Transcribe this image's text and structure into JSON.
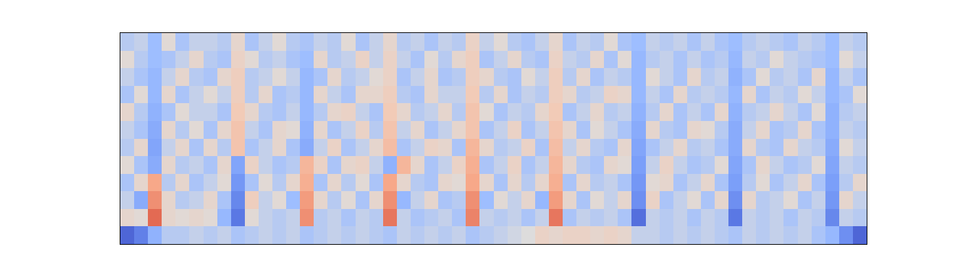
{
  "chart_data": {
    "type": "heatmap",
    "color": "coolwarm",
    "tick_labels": false,
    "zlim": [
      -1,
      1
    ],
    "cells": [
      [
        -0.85,
        -0.7,
        -0.35,
        -0.15,
        -0.15,
        -0.1,
        -0.15,
        -0.1,
        -0.2,
        -0.15,
        -0.1,
        -0.15,
        -0.1,
        -0.2,
        -0.15,
        -0.1,
        -0.15,
        -0.1,
        -0.15,
        -0.2,
        -0.1,
        -0.15,
        -0.1,
        -0.15,
        -0.1,
        -0.2,
        -0.15,
        -0.1,
        -0.05,
        0.0,
        0.15,
        0.1,
        0.15,
        0.15,
        0.1,
        0.15,
        0.1,
        -0.1,
        -0.1,
        -0.15,
        -0.1,
        -0.15,
        -0.1,
        -0.15,
        -0.2,
        -0.1,
        -0.15,
        -0.1,
        -0.15,
        -0.1,
        -0.2,
        -0.3,
        -0.6,
        -0.85
      ],
      [
        0.1,
        0.05,
        0.75,
        0.1,
        0.05,
        0.1,
        0.05,
        -0.3,
        -0.75,
        0.05,
        -0.1,
        -0.15,
        -0.1,
        0.6,
        -0.15,
        -0.1,
        -0.2,
        -0.1,
        -0.15,
        0.7,
        -0.1,
        -0.2,
        -0.15,
        -0.1,
        -0.2,
        0.65,
        -0.1,
        -0.15,
        -0.1,
        -0.2,
        -0.1,
        0.7,
        -0.2,
        -0.1,
        -0.15,
        -0.1,
        -0.2,
        -0.8,
        -0.1,
        -0.15,
        -0.1,
        -0.2,
        -0.1,
        -0.15,
        -0.75,
        -0.1,
        -0.15,
        -0.1,
        -0.2,
        -0.1,
        -0.15,
        -0.65,
        -0.1,
        -0.15
      ],
      [
        -0.1,
        -0.4,
        0.6,
        0.1,
        -0.15,
        -0.1,
        0.1,
        -0.2,
        -0.65,
        0.2,
        -0.1,
        0.05,
        -0.25,
        0.55,
        0.1,
        -0.15,
        0.05,
        -0.2,
        0.1,
        0.6,
        -0.3,
        -0.1,
        0.1,
        -0.2,
        -0.15,
        0.6,
        -0.25,
        0.05,
        -0.1,
        0.1,
        -0.3,
        0.55,
        0.1,
        -0.2,
        0.05,
        -0.1,
        0.1,
        -0.6,
        0.15,
        -0.2,
        -0.1,
        0.05,
        -0.2,
        0.1,
        -0.6,
        0.1,
        -0.15,
        -0.1,
        0.05,
        -0.2,
        -0.1,
        -0.55,
        0.1,
        -0.1
      ],
      [
        -0.2,
        0.1,
        0.5,
        -0.15,
        0.1,
        -0.2,
        -0.1,
        0.05,
        -0.55,
        -0.2,
        0.05,
        -0.15,
        0.1,
        0.45,
        -0.2,
        0.1,
        -0.15,
        0.05,
        -0.2,
        0.5,
        0.1,
        -0.15,
        -0.2,
        0.1,
        0.05,
        0.5,
        0.1,
        -0.2,
        0.1,
        -0.15,
        0.1,
        0.45,
        -0.2,
        0.1,
        -0.15,
        -0.1,
        -0.2,
        -0.55,
        0.05,
        0.1,
        -0.2,
        -0.1,
        0.1,
        -0.2,
        -0.5,
        -0.15,
        0.05,
        -0.2,
        -0.1,
        0.1,
        -0.2,
        -0.5,
        -0.15,
        0.1
      ],
      [
        0.05,
        -0.2,
        -0.4,
        0.1,
        -0.15,
        -0.1,
        -0.2,
        0.1,
        -0.45,
        0.15,
        -0.1,
        -0.2,
        -0.15,
        0.4,
        0.15,
        -0.2,
        0.1,
        0.15,
        -0.1,
        -0.35,
        0.4,
        0.1,
        -0.2,
        -0.1,
        0.15,
        0.45,
        -0.2,
        -0.1,
        0.15,
        -0.2,
        -0.1,
        0.4,
        0.1,
        -0.15,
        -0.2,
        0.1,
        0.05,
        -0.5,
        -0.1,
        0.15,
        -0.1,
        -0.2,
        -0.15,
        0.05,
        -0.45,
        -0.2,
        0.1,
        -0.1,
        -0.2,
        -0.15,
        0.05,
        -0.45,
        -0.1,
        -0.15
      ],
      [
        -0.15,
        0.1,
        -0.45,
        -0.1,
        0.1,
        -0.2,
        0.1,
        -0.15,
        0.3,
        -0.2,
        -0.1,
        0.1,
        -0.2,
        -0.4,
        -0.1,
        0.15,
        -0.2,
        -0.1,
        0.1,
        0.35,
        -0.2,
        -0.1,
        0.15,
        0.1,
        -0.2,
        0.4,
        0.1,
        -0.15,
        -0.1,
        0.15,
        -0.2,
        0.35,
        -0.1,
        0.1,
        -0.15,
        -0.2,
        0.1,
        -0.45,
        -0.2,
        -0.1,
        0.1,
        -0.15,
        -0.1,
        -0.2,
        -0.4,
        0.1,
        -0.15,
        -0.2,
        0.1,
        -0.1,
        -0.15,
        -0.4,
        0.05,
        -0.1
      ],
      [
        -0.1,
        -0.2,
        -0.4,
        0.1,
        -0.15,
        0.05,
        -0.2,
        0.1,
        0.3,
        -0.1,
        -0.2,
        0.1,
        0.05,
        -0.35,
        0.1,
        -0.2,
        -0.1,
        0.15,
        -0.15,
        0.3,
        -0.1,
        0.1,
        -0.2,
        -0.1,
        0.1,
        0.3,
        -0.2,
        -0.1,
        0.15,
        -0.2,
        -0.1,
        0.3,
        0.1,
        -0.2,
        0.05,
        -0.1,
        -0.2,
        -0.4,
        0.1,
        -0.15,
        -0.2,
        0.1,
        0.05,
        -0.15,
        -0.4,
        -0.1,
        0.1,
        -0.2,
        -0.15,
        0.1,
        -0.2,
        -0.35,
        -0.1,
        -0.15
      ],
      [
        0.1,
        -0.15,
        -0.35,
        -0.2,
        0.05,
        -0.1,
        -0.1,
        -0.2,
        0.25,
        0.1,
        -0.15,
        -0.2,
        -0.1,
        -0.3,
        -0.15,
        0.1,
        0.15,
        -0.1,
        -0.2,
        0.25,
        0.1,
        -0.15,
        -0.1,
        0.1,
        -0.15,
        0.3,
        0.05,
        -0.2,
        -0.1,
        -0.15,
        0.1,
        0.25,
        -0.2,
        -0.1,
        0.1,
        -0.15,
        -0.1,
        -0.35,
        -0.15,
        0.1,
        -0.2,
        -0.1,
        -0.2,
        0.1,
        -0.35,
        -0.15,
        -0.1,
        0.1,
        -0.1,
        -0.2,
        0.05,
        -0.35,
        -0.15,
        -0.1
      ],
      [
        -0.2,
        0.05,
        -0.3,
        0.1,
        -0.2,
        -0.1,
        0.05,
        -0.1,
        0.2,
        -0.15,
        0.1,
        -0.2,
        -0.15,
        -0.3,
        0.1,
        -0.1,
        -0.2,
        0.1,
        0.1,
        0.2,
        -0.15,
        -0.2,
        0.1,
        -0.1,
        -0.1,
        0.25,
        -0.15,
        0.1,
        -0.2,
        -0.1,
        -0.15,
        0.2,
        0.1,
        -0.15,
        -0.1,
        0.15,
        0.1,
        -0.3,
        -0.1,
        -0.2,
        0.1,
        -0.15,
        -0.1,
        -0.15,
        -0.3,
        0.1,
        -0.2,
        -0.1,
        -0.15,
        0.05,
        -0.1,
        -0.3,
        -0.2,
        0.05
      ],
      [
        -0.1,
        -0.2,
        -0.3,
        -0.1,
        0.1,
        -0.15,
        -0.2,
        0.1,
        0.2,
        -0.15,
        -0.1,
        0.05,
        -0.1,
        -0.3,
        -0.2,
        0.1,
        -0.15,
        -0.1,
        0.05,
        0.15,
        -0.2,
        -0.1,
        0.1,
        -0.2,
        -0.15,
        0.2,
        0.1,
        -0.15,
        -0.2,
        0.05,
        -0.1,
        0.2,
        -0.15,
        0.1,
        -0.2,
        -0.1,
        -0.15,
        -0.3,
        0.05,
        -0.1,
        -0.2,
        0.1,
        -0.15,
        -0.1,
        -0.35,
        -0.2,
        0.05,
        -0.15,
        -0.1,
        -0.2,
        0.1,
        -0.3,
        -0.1,
        -0.2
      ],
      [
        0.05,
        -0.15,
        -0.25,
        -0.2,
        -0.1,
        0.1,
        -0.15,
        -0.2,
        0.15,
        0.05,
        -0.15,
        -0.1,
        -0.2,
        -0.25,
        0.1,
        -0.15,
        -0.1,
        0.15,
        -0.1,
        0.15,
        -0.1,
        -0.2,
        0.05,
        -0.15,
        0.1,
        0.2,
        -0.2,
        -0.1,
        0.1,
        -0.15,
        -0.2,
        0.15,
        -0.1,
        -0.15,
        0.1,
        -0.2,
        0.05,
        -0.3,
        -0.15,
        -0.1,
        -0.2,
        -0.1,
        -0.2,
        -0.15,
        -0.3,
        -0.1,
        -0.15,
        0.05,
        -0.1,
        -0.15,
        -0.2,
        -0.25,
        0.05,
        -0.1
      ],
      [
        -0.15,
        -0.1,
        -0.25,
        0.05,
        -0.2,
        -0.1,
        -0.1,
        -0.15,
        0.1,
        -0.2,
        -0.1,
        0.05,
        -0.15,
        -0.2,
        -0.1,
        -0.15,
        0.05,
        -0.2,
        -0.1,
        0.1,
        -0.15,
        -0.1,
        -0.2,
        -0.1,
        -0.15,
        0.15,
        -0.1,
        0.05,
        -0.15,
        -0.2,
        -0.1,
        0.1,
        -0.2,
        -0.1,
        -0.15,
        0.05,
        -0.2,
        -0.25,
        -0.1,
        -0.15,
        -0.1,
        -0.2,
        -0.1,
        -0.2,
        -0.25,
        -0.15,
        -0.1,
        -0.15,
        -0.2,
        -0.1,
        -0.15,
        -0.25,
        -0.1,
        -0.15
      ]
    ]
  }
}
